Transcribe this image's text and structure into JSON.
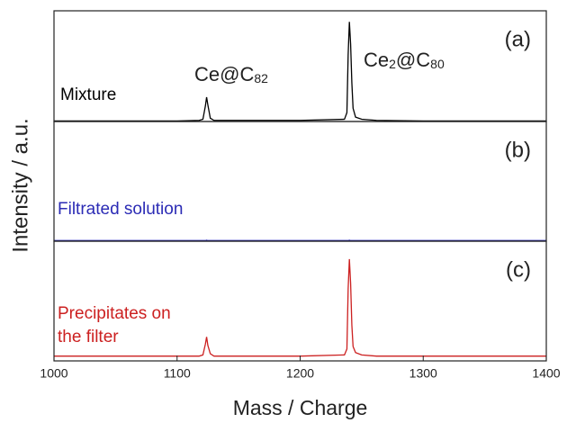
{
  "chart_data": [
    {
      "type": "line",
      "panel_label": "(a)",
      "annotations": [
        {
          "parts": [
            "Ce@C",
            "82"
          ]
        },
        {
          "parts": [
            "Ce",
            "2",
            "@C",
            "80"
          ]
        }
      ],
      "ylabel": "Intensity / a.u.",
      "x": [
        1000,
        1100,
        1118,
        1121,
        1123,
        1124,
        1125,
        1127,
        1130,
        1200,
        1236,
        1238,
        1239,
        1240,
        1241,
        1242,
        1243,
        1245,
        1250,
        1262,
        1300,
        1400
      ],
      "series": [
        {
          "name": "Mixture",
          "color": "#000000",
          "values": [
            0.5,
            0.5,
            1,
            2,
            14,
            22,
            15,
            3,
            1,
            1,
            2,
            8,
            60,
            90,
            70,
            35,
            12,
            4,
            2,
            1,
            0.5,
            0.5
          ]
        }
      ],
      "xlim": [
        1000,
        1400
      ],
      "ylim": [
        0,
        100
      ]
    },
    {
      "type": "line",
      "panel_label": "(b)",
      "x": [
        1000,
        1100,
        1118,
        1121,
        1123,
        1124,
        1125,
        1127,
        1130,
        1200,
        1236,
        1238,
        1239,
        1240,
        1241,
        1242,
        1243,
        1245,
        1250,
        1262,
        1300,
        1400
      ],
      "series": [
        {
          "name": "Filtrated solution",
          "color": "#2b2bb5",
          "values": [
            0.5,
            0.5,
            0.5,
            0.5,
            0.5,
            0.8,
            0.5,
            0.5,
            0.5,
            0.5,
            0.5,
            0.5,
            0.5,
            0.8,
            0.5,
            0.5,
            0.5,
            0.5,
            0.5,
            0.5,
            0.5,
            0.5
          ]
        }
      ],
      "xlim": [
        1000,
        1400
      ],
      "ylim": [
        0,
        100
      ]
    },
    {
      "type": "line",
      "panel_label": "(c)",
      "x": [
        1000,
        1100,
        1118,
        1121,
        1123,
        1124,
        1125,
        1127,
        1130,
        1200,
        1236,
        1238,
        1239,
        1240,
        1241,
        1242,
        1243,
        1245,
        1250,
        1262,
        1300,
        1400
      ],
      "series": [
        {
          "name": "Precipitates on the filter",
          "color": "#cc2020",
          "values": [
            4,
            4,
            4,
            5,
            14,
            20,
            13,
            6,
            4,
            4,
            5,
            10,
            60,
            85,
            65,
            30,
            12,
            7,
            5,
            4,
            4,
            4
          ]
        }
      ],
      "xlim": [
        1000,
        1400
      ],
      "ylim": [
        0,
        100
      ],
      "xticks": [
        1000,
        1100,
        1200,
        1300,
        1400
      ],
      "xlabel": "Mass / Charge"
    }
  ]
}
